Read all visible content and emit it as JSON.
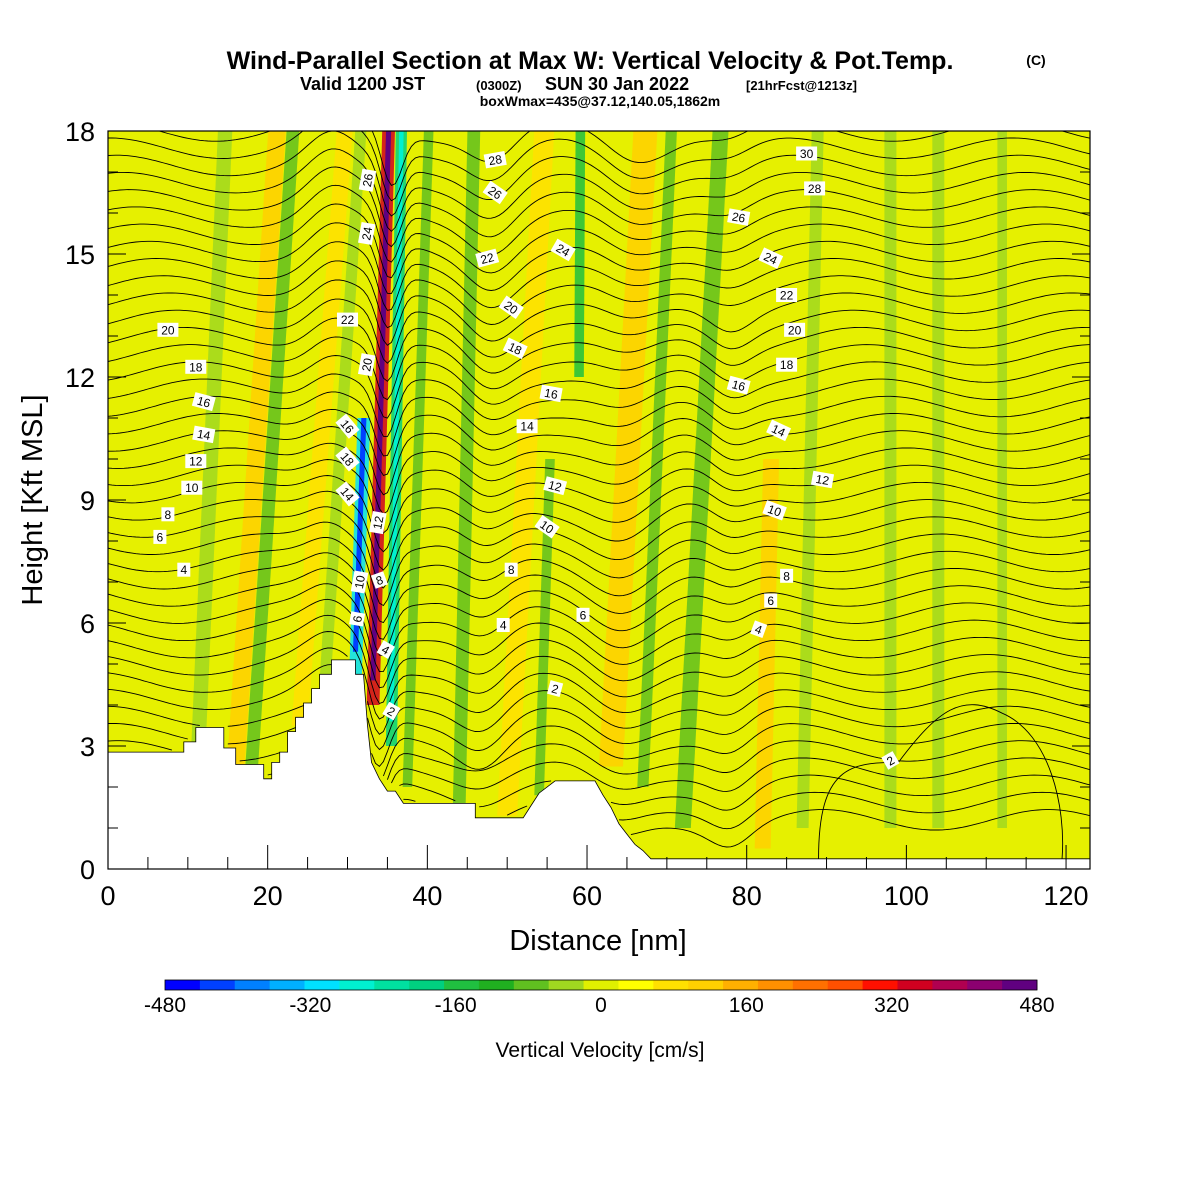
{
  "titles": {
    "main": "Wind-Parallel Section at Max W: Vertical Velocity & Pot.Temp.",
    "copyright": "(C)",
    "valid_a": "Valid 1200 JST",
    "valid_b": "(0300Z)",
    "valid_c": "SUN 30 Jan 2022",
    "valid_d": "[21hrFcst@1213z]",
    "box": "boxWmax=435@37.12,140.05,1862m"
  },
  "chart_data": {
    "type": "heatmap",
    "xlabel": "Distance [nm]",
    "ylabel": "Height [Kft MSL]",
    "xlim": [
      0,
      123
    ],
    "ylim": [
      0,
      18
    ],
    "x_ticks": [
      0,
      20,
      40,
      60,
      80,
      100,
      120
    ],
    "y_ticks": [
      0,
      3,
      6,
      9,
      12,
      15,
      18
    ],
    "colorbar": {
      "label": "Vertical Velocity [cm/s]",
      "tick_values": [
        -480,
        -320,
        -160,
        0,
        160,
        320,
        480
      ],
      "tick_labels": [
        "-480",
        "-320",
        "-160",
        "0",
        "160",
        "320",
        "480"
      ],
      "colors": [
        "#0000ff",
        "#0040ff",
        "#0080ff",
        "#00b0ff",
        "#00e0ff",
        "#00f0d0",
        "#00e0a0",
        "#00d080",
        "#20c040",
        "#20b020",
        "#60c020",
        "#a0d820",
        "#e0f000",
        "#ffff00",
        "#ffe000",
        "#ffd000",
        "#ffb000",
        "#ff9000",
        "#ff7000",
        "#ff5000",
        "#ff1000",
        "#d00020",
        "#b00050",
        "#8c0070",
        "#600080"
      ]
    },
    "background_color": "#e6f000",
    "terrain": [
      [
        0,
        2.85
      ],
      [
        9.5,
        2.85
      ],
      [
        9.5,
        3.1
      ],
      [
        11,
        3.1
      ],
      [
        11,
        3.45
      ],
      [
        14.5,
        3.45
      ],
      [
        14.5,
        2.95
      ],
      [
        16,
        2.95
      ],
      [
        16,
        2.55
      ],
      [
        19.5,
        2.55
      ],
      [
        19.5,
        2.2
      ],
      [
        20.5,
        2.2
      ],
      [
        20.5,
        2.6
      ],
      [
        21.5,
        2.6
      ],
      [
        21.5,
        2.85
      ],
      [
        22.5,
        2.85
      ],
      [
        22.5,
        3.35
      ],
      [
        23.5,
        3.35
      ],
      [
        23.5,
        3.7
      ],
      [
        24.5,
        3.7
      ],
      [
        24.5,
        4.05
      ],
      [
        25.5,
        4.05
      ],
      [
        25.5,
        4.4
      ],
      [
        26.5,
        4.4
      ],
      [
        26.5,
        4.75
      ],
      [
        28,
        4.75
      ],
      [
        28,
        5.1
      ],
      [
        31,
        5.1
      ],
      [
        31,
        4.75
      ],
      [
        32,
        4.75
      ],
      [
        32.5,
        3.5
      ],
      [
        33,
        2.6
      ],
      [
        34,
        2.2
      ],
      [
        35,
        1.9
      ],
      [
        36,
        1.9
      ],
      [
        37,
        1.6
      ],
      [
        46,
        1.6
      ],
      [
        46,
        1.25
      ],
      [
        50,
        1.25
      ],
      [
        52,
        1.25
      ],
      [
        53,
        1.55
      ],
      [
        54,
        1.85
      ],
      [
        56,
        2.15
      ],
      [
        61,
        2.15
      ],
      [
        62,
        1.8
      ],
      [
        63,
        1.5
      ],
      [
        64,
        1.1
      ],
      [
        65,
        0.85
      ],
      [
        66,
        0.6
      ],
      [
        67,
        0.45
      ],
      [
        68,
        0.25
      ],
      [
        69,
        0.25
      ],
      [
        123,
        0.25
      ]
    ],
    "shading_bands": [
      {
        "x": 11,
        "xs": 4,
        "w": 1.8,
        "y0": 1.5,
        "y1": 18,
        "value": -40
      },
      {
        "x": 16,
        "xs": 6,
        "w": 2.2,
        "y0": 2.5,
        "y1": 18,
        "value": 100
      },
      {
        "x": 18,
        "xs": 6,
        "w": 1.6,
        "y0": 2.5,
        "y1": 18,
        "value": -60
      },
      {
        "x": 24,
        "xs": 7,
        "w": 2,
        "y0": 3.5,
        "y1": 18,
        "value": 80
      },
      {
        "x": 27,
        "xs": 6,
        "w": 1.4,
        "y0": 4,
        "y1": 18,
        "value": -50
      },
      {
        "x": 31,
        "xs": 3,
        "w": 1.6,
        "y0": 4.7,
        "y1": 11,
        "value": -320
      },
      {
        "x": 33.2,
        "xs": 2.5,
        "w": 1.6,
        "y0": 4,
        "y1": 18,
        "value": 330
      },
      {
        "x": 35.5,
        "xs": 1.5,
        "w": 1.4,
        "y0": 3,
        "y1": 18,
        "value": -200
      },
      {
        "x": 37.5,
        "xs": 3,
        "w": 1.2,
        "y0": 2,
        "y1": 18,
        "value": -80
      },
      {
        "x": 44,
        "xs": 2,
        "w": 1.6,
        "y0": 1.6,
        "y1": 18,
        "value": -90
      },
      {
        "x": 50,
        "xs": 5,
        "w": 2.5,
        "y0": 1.3,
        "y1": 18,
        "value": 70
      },
      {
        "x": 54,
        "xs": 3,
        "w": 1.2,
        "y0": 1.8,
        "y1": 10,
        "value": -90
      },
      {
        "x": 59,
        "xs": 0.5,
        "w": 1.2,
        "y0": 12,
        "y1": 18,
        "value": -140
      },
      {
        "x": 63,
        "xs": 5,
        "w": 3,
        "y0": 2.5,
        "y1": 18,
        "value": 110
      },
      {
        "x": 67,
        "xs": 4,
        "w": 1.4,
        "y0": 2,
        "y1": 18,
        "value": -70
      },
      {
        "x": 72,
        "xs": 5,
        "w": 2,
        "y0": 1,
        "y1": 18,
        "value": -60
      },
      {
        "x": 82,
        "xs": 2,
        "w": 2,
        "y0": 0.5,
        "y1": 10,
        "value": 100
      },
      {
        "x": 87,
        "xs": 2,
        "w": 1.5,
        "y0": 1,
        "y1": 18,
        "value": -40
      },
      {
        "x": 98,
        "xs": 0,
        "w": 1.5,
        "y0": 1,
        "y1": 18,
        "value": -30
      },
      {
        "x": 104,
        "xs": 0,
        "w": 1.5,
        "y0": 1,
        "y1": 18,
        "value": -20
      },
      {
        "x": 112,
        "xs": 0,
        "w": 1.2,
        "y0": 1,
        "y1": 18,
        "value": -20
      }
    ],
    "theta_levels": [
      2,
      4,
      6,
      8,
      10,
      12,
      14,
      16,
      18,
      20,
      22,
      24,
      26,
      28,
      30
    ],
    "contour_labels": [
      {
        "text": "30",
        "x": 87.5,
        "y": 17.45,
        "rot": 0
      },
      {
        "text": "28",
        "x": 48.5,
        "y": 17.3,
        "rot": -10
      },
      {
        "text": "28",
        "x": 88.5,
        "y": 16.6,
        "rot": 0
      },
      {
        "text": "26",
        "x": 32.5,
        "y": 16.8,
        "rot": -80
      },
      {
        "text": "26",
        "x": 48.5,
        "y": 16.5,
        "rot": 35
      },
      {
        "text": "26",
        "x": 79,
        "y": 15.9,
        "rot": 10
      },
      {
        "text": "24",
        "x": 32.4,
        "y": 15.5,
        "rot": -80
      },
      {
        "text": "24",
        "x": 57,
        "y": 15.1,
        "rot": 30
      },
      {
        "text": "24",
        "x": 83,
        "y": 14.9,
        "rot": 25
      },
      {
        "text": "22",
        "x": 47.5,
        "y": 14.9,
        "rot": -15
      },
      {
        "text": "22",
        "x": 85,
        "y": 14,
        "rot": 0
      },
      {
        "text": "22",
        "x": 30,
        "y": 13.4,
        "rot": 0
      },
      {
        "text": "20",
        "x": 7.5,
        "y": 13.15,
        "rot": 0
      },
      {
        "text": "20",
        "x": 50.5,
        "y": 13.7,
        "rot": 35
      },
      {
        "text": "20",
        "x": 86,
        "y": 13.15,
        "rot": 0
      },
      {
        "text": "20",
        "x": 32.4,
        "y": 12.3,
        "rot": -80
      },
      {
        "text": "18",
        "x": 51,
        "y": 12.7,
        "rot": 25
      },
      {
        "text": "18",
        "x": 85,
        "y": 12.3,
        "rot": 0
      },
      {
        "text": "18",
        "x": 11,
        "y": 12.25,
        "rot": 0
      },
      {
        "text": "16",
        "x": 79,
        "y": 11.8,
        "rot": 15
      },
      {
        "text": "16",
        "x": 55.5,
        "y": 11.6,
        "rot": 10
      },
      {
        "text": "16",
        "x": 12,
        "y": 11.4,
        "rot": 15
      },
      {
        "text": "16",
        "x": 30,
        "y": 10.8,
        "rot": 50
      },
      {
        "text": "14",
        "x": 52.5,
        "y": 10.8,
        "rot": 0
      },
      {
        "text": "14",
        "x": 84,
        "y": 10.7,
        "rot": 25
      },
      {
        "text": "14",
        "x": 12,
        "y": 10.6,
        "rot": 10
      },
      {
        "text": "12",
        "x": 11,
        "y": 9.95,
        "rot": 0
      },
      {
        "text": "18",
        "x": 30,
        "y": 10,
        "rot": 50
      },
      {
        "text": "12",
        "x": 56,
        "y": 9.35,
        "rot": 15
      },
      {
        "text": "12",
        "x": 89.5,
        "y": 9.5,
        "rot": 10
      },
      {
        "text": "10",
        "x": 10.5,
        "y": 9.3,
        "rot": 0
      },
      {
        "text": "14",
        "x": 30,
        "y": 9.15,
        "rot": 50
      },
      {
        "text": "10",
        "x": 83.5,
        "y": 8.75,
        "rot": 20
      },
      {
        "text": "8",
        "x": 7.5,
        "y": 8.65,
        "rot": 0
      },
      {
        "text": "12",
        "x": 33.8,
        "y": 8.45,
        "rot": -80
      },
      {
        "text": "10",
        "x": 55,
        "y": 8.35,
        "rot": 35
      },
      {
        "text": "6",
        "x": 6.5,
        "y": 8.1,
        "rot": 0
      },
      {
        "text": "4",
        "x": 9.5,
        "y": 7.3,
        "rot": 0
      },
      {
        "text": "8",
        "x": 50.5,
        "y": 7.3,
        "rot": 0
      },
      {
        "text": "8",
        "x": 85,
        "y": 7.15,
        "rot": 0
      },
      {
        "text": "10",
        "x": 31.5,
        "y": 7,
        "rot": -80
      },
      {
        "text": "8",
        "x": 34,
        "y": 7.05,
        "rot": -20
      },
      {
        "text": "6",
        "x": 83,
        "y": 6.55,
        "rot": 0
      },
      {
        "text": "6",
        "x": 59.5,
        "y": 6.2,
        "rot": 0
      },
      {
        "text": "6",
        "x": 31.2,
        "y": 6.1,
        "rot": -80
      },
      {
        "text": "4",
        "x": 49.5,
        "y": 5.95,
        "rot": 0
      },
      {
        "text": "4",
        "x": 81.5,
        "y": 5.85,
        "rot": 20
      },
      {
        "text": "4",
        "x": 34.8,
        "y": 5.35,
        "rot": 30
      },
      {
        "text": "2",
        "x": 56,
        "y": 4.4,
        "rot": 15
      },
      {
        "text": "2",
        "x": 35.5,
        "y": 3.85,
        "rot": 30
      },
      {
        "text": "2",
        "x": 98,
        "y": 2.65,
        "rot": -30
      }
    ]
  }
}
